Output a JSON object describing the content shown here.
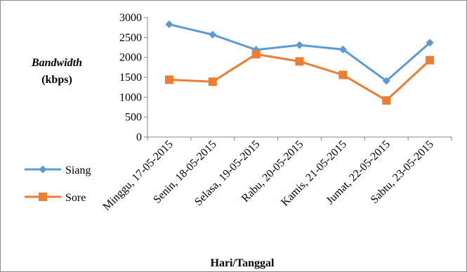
{
  "chart_data": {
    "type": "line",
    "categories": [
      "Minggu, 17-05-2015",
      "Senin, 18-05-2015",
      "Selasa, 19-05-2015",
      "Rabu, 20-05-2015",
      "Kamis, 21-05-2015",
      "Jumat, 22-05-2015",
      "Sabtu, 23-05-2015"
    ],
    "series": [
      {
        "name": "Siang",
        "values": [
          2830,
          2570,
          2190,
          2310,
          2200,
          1410,
          2370
        ],
        "color": "#5b9bd5",
        "marker": "diamond"
      },
      {
        "name": "Sore",
        "values": [
          1440,
          1390,
          2080,
          1900,
          1560,
          920,
          1930
        ],
        "color": "#ed7d31",
        "marker": "square"
      }
    ],
    "title": "",
    "ylabel_line1": "Bandwidth",
    "ylabel_line2": "(kbps)",
    "xlabel": "Hari/Tanggal",
    "ylim": [
      0,
      3000
    ],
    "yticks": [
      0,
      500,
      1000,
      1500,
      2000,
      2500,
      3000
    ],
    "grid": false,
    "legend": "left"
  }
}
